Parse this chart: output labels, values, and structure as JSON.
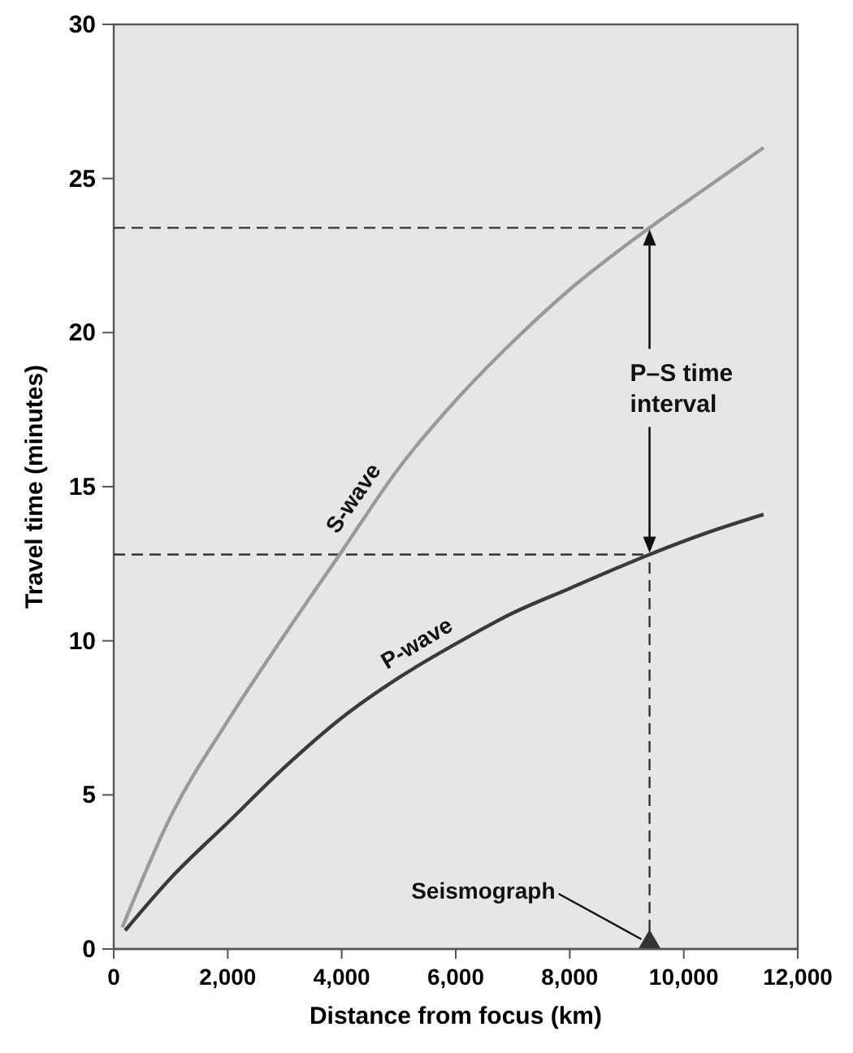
{
  "chart_data": {
    "type": "line",
    "xlabel": "Distance from focus (km)",
    "ylabel": "Travel time (minutes)",
    "xlim": [
      0,
      12000
    ],
    "ylim": [
      0,
      30
    ],
    "xticks": [
      {
        "value": 0,
        "label": "0"
      },
      {
        "value": 2000,
        "label": "2,000"
      },
      {
        "value": 4000,
        "label": "4,000"
      },
      {
        "value": 6000,
        "label": "6,000"
      },
      {
        "value": 8000,
        "label": "8,000"
      },
      {
        "value": 10000,
        "label": "10,000"
      },
      {
        "value": 12000,
        "label": "12,000"
      }
    ],
    "yticks": [
      0,
      5,
      10,
      15,
      20,
      25,
      30
    ],
    "grid": false,
    "marker": "none",
    "line_style": "solid",
    "series": [
      {
        "name": "S-wave",
        "color": "#9a9a9a",
        "x": [
          150,
          1000,
          2000,
          3000,
          4000,
          5000,
          6000,
          7000,
          8000,
          9400,
          10400,
          11400
        ],
        "values": [
          0.7,
          4.3,
          7.4,
          10.2,
          12.9,
          15.6,
          17.8,
          19.7,
          21.4,
          23.4,
          24.7,
          26.0
        ]
      },
      {
        "name": "P-wave",
        "color": "#3a3a3a",
        "x": [
          200,
          1000,
          2000,
          3000,
          4000,
          5000,
          6000,
          7000,
          8000,
          9400,
          10400,
          11400
        ],
        "values": [
          0.6,
          2.3,
          4.1,
          5.9,
          7.5,
          8.8,
          9.9,
          10.9,
          11.7,
          12.8,
          13.5,
          14.1
        ]
      }
    ],
    "ref_lines": [
      {
        "axis": "y",
        "value": 23.4,
        "line_style": "dashed"
      },
      {
        "axis": "y",
        "value": 12.8,
        "line_style": "dashed"
      },
      {
        "axis": "x",
        "value": 9400,
        "line_style": "dashed"
      }
    ],
    "annotations": [
      "P–S time interval",
      "Seismograph"
    ]
  }
}
